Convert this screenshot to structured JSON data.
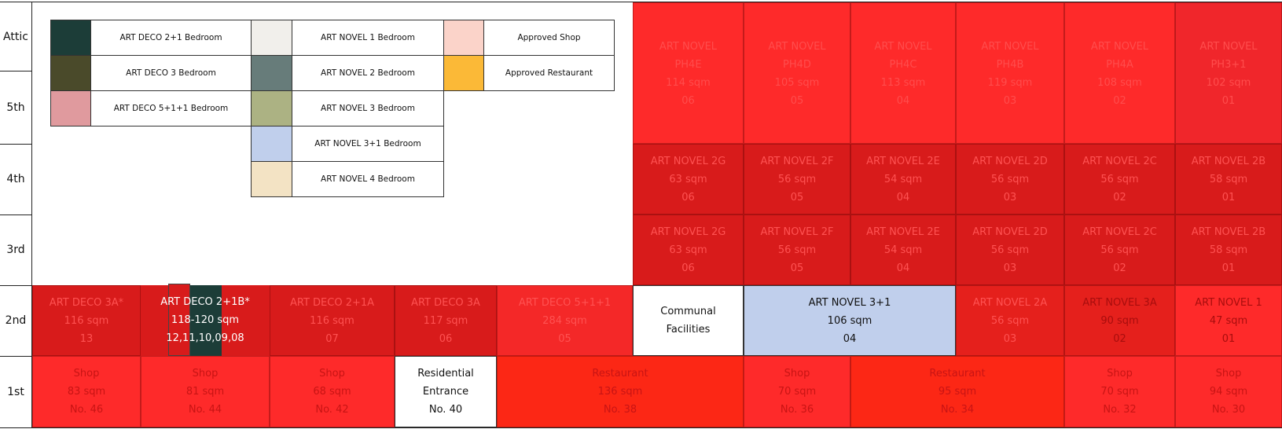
{
  "floors": [
    "Attic",
    "5th",
    "4th",
    "3rd",
    "2nd",
    "1st"
  ],
  "colors": {
    "red_bright": "#fe2a2a",
    "red_attic_last": "#f0262b",
    "red_dark": "#d81b1b",
    "red_orange": "#fc2715",
    "red_mid": "#e5201c",
    "red_light": "#f42828",
    "text_on_red": "#ff4d4d",
    "text_faint": "#ff5252",
    "text_on_dark": "#ffffff",
    "text_plain": "#111111"
  },
  "legend": [
    {
      "label": "ART DECO 2+1 Bedroom",
      "color": "#1c3d38"
    },
    {
      "label": "ART DECO 3 Bedroom",
      "color": "#4a4a2a"
    },
    {
      "label": "ART DECO 5+1+1 Bedroom",
      "color": "#e09a9e"
    },
    {
      "label": "ART NOVEL 1 Bedroom",
      "color": "#f1efeb"
    },
    {
      "label": "ART NOVEL 2 Bedroom",
      "color": "#677c7a"
    },
    {
      "label": "ART NOVEL 3 Bedroom",
      "color": "#acb283"
    },
    {
      "label": "ART NOVEL 3+1 Bedroom",
      "color": "#c0cfec"
    },
    {
      "label": "ART NOVEL 4 Bedroom",
      "color": "#f3e3c4"
    },
    {
      "label": "Approved Shop",
      "color": "#fbd3c9"
    },
    {
      "label": "Approved Restaurant",
      "color": "#fbb937"
    }
  ],
  "attic_units": [
    {
      "name": "ART NOVEL",
      "code": "PH4E",
      "area": "114 sqm",
      "num": "06"
    },
    {
      "name": "ART NOVEL",
      "code": "PH4D",
      "area": "105 sqm",
      "num": "05"
    },
    {
      "name": "ART NOVEL",
      "code": "PH4C",
      "area": "113 sqm",
      "num": "04"
    },
    {
      "name": "ART NOVEL",
      "code": "PH4B",
      "area": "119 sqm",
      "num": "03"
    },
    {
      "name": "ART NOVEL",
      "code": "PH4A",
      "area": "108 sqm",
      "num": "02"
    },
    {
      "name": "ART NOVEL",
      "code": "PH3+1",
      "area": "102 sqm",
      "num": "01"
    }
  ],
  "fourth_units": [
    {
      "name": "ART NOVEL 2G",
      "area": "63 sqm",
      "num": "06"
    },
    {
      "name": "ART NOVEL 2F",
      "area": "56 sqm",
      "num": "05"
    },
    {
      "name": "ART NOVEL 2E",
      "area": "54 sqm",
      "num": "04"
    },
    {
      "name": "ART NOVEL 2D",
      "area": "56 sqm",
      "num": "03"
    },
    {
      "name": "ART NOVEL 2C",
      "area": "56 sqm",
      "num": "02"
    },
    {
      "name": "ART NOVEL 2B",
      "area": "58 sqm",
      "num": "01"
    }
  ],
  "third_units": [
    {
      "name": "ART NOVEL 2G",
      "area": "63 sqm",
      "num": "06"
    },
    {
      "name": "ART NOVEL 2F",
      "area": "56 sqm",
      "num": "05"
    },
    {
      "name": "ART NOVEL 2E",
      "area": "54 sqm",
      "num": "04"
    },
    {
      "name": "ART NOVEL 2D",
      "area": "56 sqm",
      "num": "03"
    },
    {
      "name": "ART NOVEL 2C",
      "area": "56 sqm",
      "num": "02"
    },
    {
      "name": "ART NOVEL 2B",
      "area": "58 sqm",
      "num": "01"
    }
  ],
  "second_units": [
    {
      "name": "ART DECO 3A*",
      "area": "116 sqm",
      "num": "13"
    },
    {
      "name": "ART DECO 2+1B*",
      "area": "118-120 sqm",
      "num": "12,11,10,09,08"
    },
    {
      "name": "ART DECO 2+1A",
      "area": "116 sqm",
      "num": "07"
    },
    {
      "name": "ART DECO 3A",
      "area": "117 sqm",
      "num": "06"
    },
    {
      "name": "ART DECO 5+1+1",
      "area": "284 sqm",
      "num": "05"
    },
    {
      "line1": "Communal",
      "line2": "Facilities"
    },
    {
      "name": "ART NOVEL 3+1",
      "area": "106 sqm",
      "num": "04"
    },
    {
      "name": "ART NOVEL 2A",
      "area": "56 sqm",
      "num": "03"
    },
    {
      "name": "ART NOVEL 3A",
      "area": "90 sqm",
      "num": "02"
    },
    {
      "name": "ART NOVEL 1",
      "area": "47 sqm",
      "num": "01"
    }
  ],
  "first_units": [
    {
      "name": "Shop",
      "area": "83 sqm",
      "num": "No. 46"
    },
    {
      "name": "Shop",
      "area": "81 sqm",
      "num": "No. 44"
    },
    {
      "name": "Shop",
      "area": "68 sqm",
      "num": "No. 42"
    },
    {
      "line1": "Residential",
      "line2": "Entrance",
      "num": "No. 40"
    },
    {
      "name": "Restaurant",
      "area": "136 sqm",
      "num": "No. 38"
    },
    {
      "name": "Shop",
      "area": "70 sqm",
      "num": "No. 36"
    },
    {
      "name": "Restaurant",
      "area": "95 sqm",
      "num": "No. 34"
    },
    {
      "name": "Shop",
      "area": "70 sqm",
      "num": "No. 32"
    },
    {
      "name": "Shop",
      "area": "94 sqm",
      "num": "No. 30"
    }
  ]
}
